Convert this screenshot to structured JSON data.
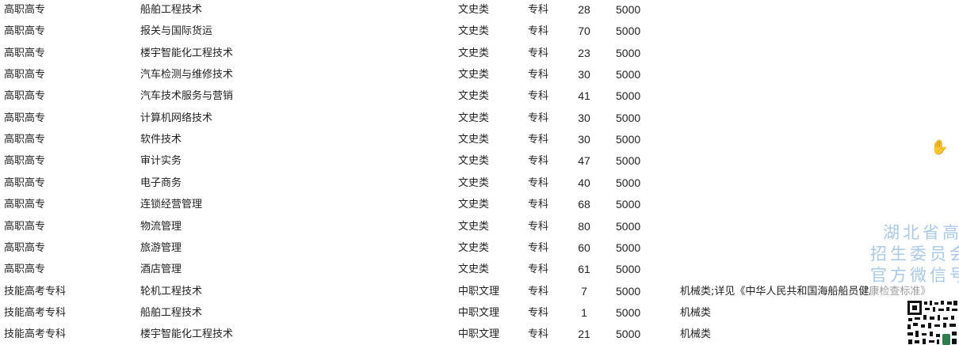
{
  "rows": [
    [
      "高职高专",
      "船舶工程技术",
      "文史类",
      "专科",
      "28",
      "5000",
      ""
    ],
    [
      "高职高专",
      "报关与国际货运",
      "文史类",
      "专科",
      "70",
      "5000",
      ""
    ],
    [
      "高职高专",
      "楼宇智能化工程技术",
      "文史类",
      "专科",
      "23",
      "5000",
      ""
    ],
    [
      "高职高专",
      "汽车检测与维修技术",
      "文史类",
      "专科",
      "30",
      "5000",
      ""
    ],
    [
      "高职高专",
      "汽车技术服务与营销",
      "文史类",
      "专科",
      "41",
      "5000",
      ""
    ],
    [
      "高职高专",
      "计算机网络技术",
      "文史类",
      "专科",
      "30",
      "5000",
      ""
    ],
    [
      "高职高专",
      "软件技术",
      "文史类",
      "专科",
      "30",
      "5000",
      ""
    ],
    [
      "高职高专",
      "审计实务",
      "文史类",
      "专科",
      "47",
      "5000",
      ""
    ],
    [
      "高职高专",
      "电子商务",
      "文史类",
      "专科",
      "40",
      "5000",
      ""
    ],
    [
      "高职高专",
      "连锁经营管理",
      "文史类",
      "专科",
      "68",
      "5000",
      ""
    ],
    [
      "高职高专",
      "物流管理",
      "文史类",
      "专科",
      "80",
      "5000",
      ""
    ],
    [
      "高职高专",
      "旅游管理",
      "文史类",
      "专科",
      "60",
      "5000",
      ""
    ],
    [
      "高职高专",
      "酒店管理",
      "文史类",
      "专科",
      "61",
      "5000",
      ""
    ],
    [
      "技能高考专科",
      "轮机工程技术",
      "中职文理",
      "专科",
      "7",
      "5000",
      "机械类;详见《中华人民共和国海船船员健康检查标准》"
    ],
    [
      "技能高考专科",
      "船舶工程技术",
      "中职文理",
      "专科",
      "1",
      "5000",
      "机械类"
    ],
    [
      "技能高考专科",
      "楼宇智能化工程技术",
      "中职文理",
      "专科",
      "21",
      "5000",
      "机械类"
    ]
  ],
  "watermark": {
    "lines": [
      "湖北省高",
      "招生委员会",
      "官方微信号"
    ],
    "color": "#a9c9e6"
  },
  "cursor_icon": "hand-pointer-icon"
}
